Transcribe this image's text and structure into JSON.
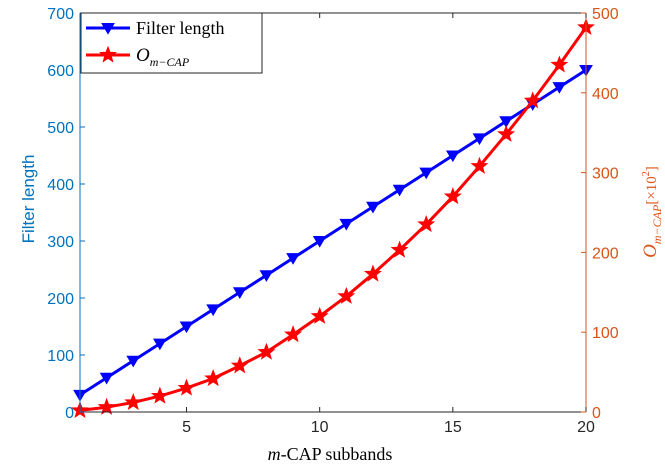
{
  "chart_data": {
    "type": "line",
    "xlabel_italic": "m",
    "xlabel_rest": "-CAP subbands",
    "ylabel_left": "Filter length",
    "ylabel_right_main": "O",
    "ylabel_right_sub": "m−CAP",
    "ylabel_right_unit_open": "[×10",
    "ylabel_right_unit_exp": "2",
    "ylabel_right_unit_close": "]",
    "x": [
      1,
      2,
      3,
      4,
      5,
      6,
      7,
      8,
      9,
      10,
      11,
      12,
      13,
      14,
      15,
      16,
      17,
      18,
      19,
      20
    ],
    "xlim": [
      1,
      20
    ],
    "xticks": [
      5,
      10,
      15,
      20
    ],
    "ylim_left": [
      0,
      700
    ],
    "yticks_left": [
      0,
      100,
      200,
      300,
      400,
      500,
      600,
      700
    ],
    "ylim_right": [
      0,
      500
    ],
    "yticks_right": [
      0,
      100,
      200,
      300,
      400,
      500
    ],
    "grid": false,
    "legend_position": "top-left",
    "series": [
      {
        "name": "Filter length",
        "axis": "left",
        "color": "#0000ff",
        "marker": "triangle-down",
        "values": [
          30,
          60,
          90,
          120,
          150,
          180,
          210,
          240,
          270,
          300,
          330,
          360,
          390,
          420,
          450,
          480,
          510,
          540,
          570,
          600
        ]
      },
      {
        "name_main": "O",
        "name_sub": "m−CAP",
        "axis": "right",
        "color": "#ff0000",
        "marker": "star",
        "values": [
          2,
          6,
          12,
          20,
          30,
          42,
          58,
          75,
          97,
          120,
          145,
          173,
          203,
          235,
          270,
          308,
          348,
          390,
          435,
          482
        ]
      }
    ],
    "colors": {
      "left_axis": "#0072bd",
      "right_axis": "#d95319",
      "axis_box": "#262626"
    }
  }
}
